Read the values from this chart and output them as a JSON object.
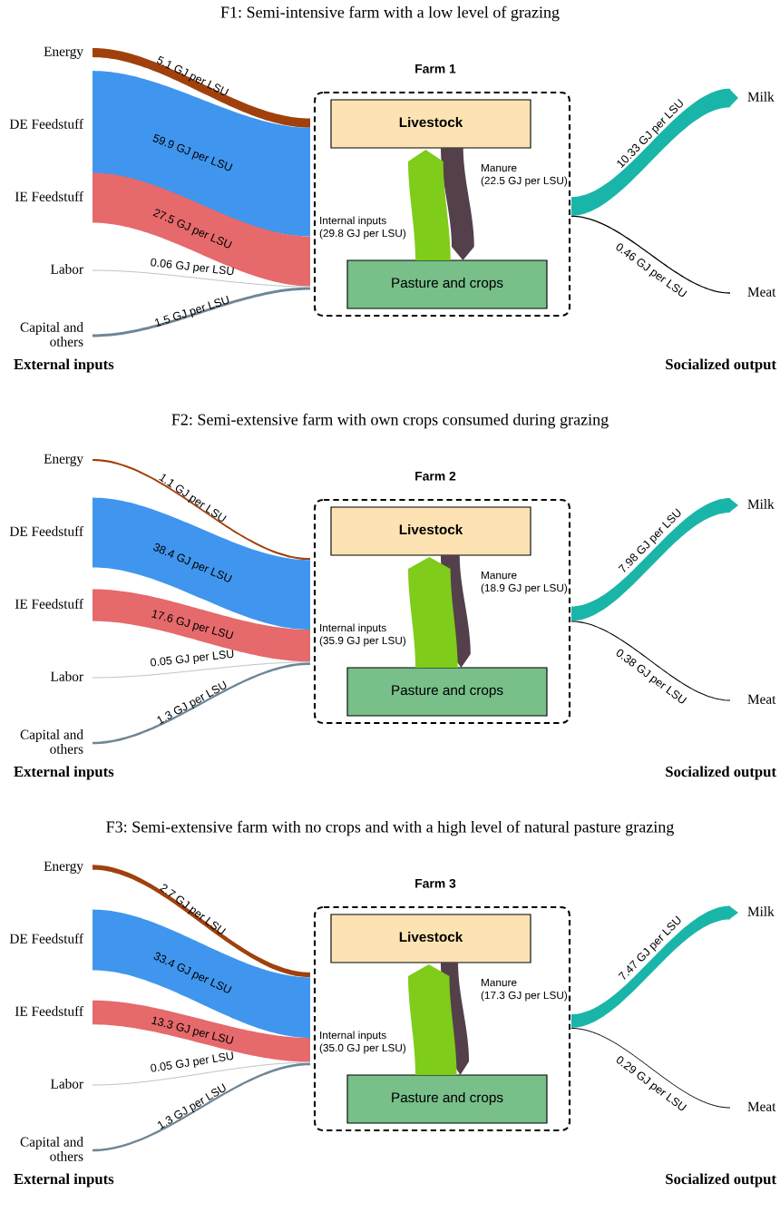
{
  "chart_data": [
    {
      "type": "other",
      "title": "F1: Semi-intensive farm with a low level of grazing",
      "categories": [
        "Energy",
        "DE Feedstuff",
        "IE Feedstuff",
        "Labor",
        "Capital and\nothers",
        "Internal inputs",
        "Manure",
        "Milk",
        "Meat"
      ],
      "values": [
        5.1,
        59.9,
        27.5,
        0.06,
        1.5,
        29.8,
        22.5,
        10.33,
        0.46
      ],
      "value_labels": [
        "5.1 GJ per LSU",
        "59.9 GJ per LSU",
        "27.5 GJ per LSU",
        "0.06 GJ per LSU",
        "1.5 GJ per LSU",
        "(29.8 GJ per LSU)",
        "(22.5 GJ per LSU)",
        "10.33 GJ per LSU",
        "0.46 GJ per LSU"
      ],
      "colors": [
        "#a0410d",
        "#4096ee",
        "#e6696b",
        "#b8c0c8",
        "#6e8697",
        "#7fcc1a",
        "#53404b",
        "#1ab5a9",
        "#000000"
      ],
      "annotations": [
        "Farm 1",
        "Livestock",
        "Pasture and crops",
        "External inputs",
        "Socialized output"
      ]
    },
    {
      "type": "other",
      "title": "F2: Semi-extensive farm with own crops consumed during grazing",
      "categories": [
        "Energy",
        "DE Feedstuff",
        "IE Feedstuff",
        "Labor",
        "Capital and\nothers",
        "Internal inputs",
        "Manure",
        "Milk",
        "Meat"
      ],
      "values": [
        1.1,
        38.4,
        17.6,
        0.05,
        1.3,
        35.9,
        18.9,
        7.98,
        0.38
      ],
      "value_labels": [
        "1.1 GJ per LSU",
        "38.4 GJ per LSU",
        "17.6 GJ per LSU",
        "0.05 GJ per LSU",
        "1.3 GJ per LSU",
        "(35.9 GJ per LSU)",
        "(18.9 GJ per LSU)",
        "7.98 GJ per LSU",
        "0.38 GJ per LSU"
      ],
      "colors": [
        "#a0410d",
        "#4096ee",
        "#e6696b",
        "#b8c0c8",
        "#6e8697",
        "#7fcc1a",
        "#53404b",
        "#1ab5a9",
        "#000000"
      ],
      "annotations": [
        "Farm 2",
        "Livestock",
        "Pasture and crops",
        "External inputs",
        "Socialized output"
      ]
    },
    {
      "type": "other",
      "title": "F3: Semi-extensive farm with no crops and with a high level of natural pasture grazing",
      "categories": [
        "Energy",
        "DE Feedstuff",
        "IE Feedstuff",
        "Labor",
        "Capital and\nothers",
        "Internal inputs",
        "Manure",
        "Milk",
        "Meat"
      ],
      "values": [
        2.7,
        33.4,
        13.3,
        0.05,
        1.3,
        35.0,
        17.3,
        7.47,
        0.29
      ],
      "value_labels": [
        "2.7 GJ per LSU",
        "33.4 GJ per LSU",
        "13.3 GJ per LSU",
        "0.05 GJ per LSU",
        "1.3 GJ per LSU",
        "(35.0 GJ per LSU)",
        "(17.3 GJ per LSU)",
        "7.47 GJ per LSU",
        "0.29 GJ per LSU"
      ],
      "colors": [
        "#a0410d",
        "#4096ee",
        "#e6696b",
        "#b8c0c8",
        "#6e8697",
        "#7fcc1a",
        "#53404b",
        "#1ab5a9",
        "#000000"
      ],
      "annotations": [
        "Farm 3",
        "Livestock",
        "Pasture and crops",
        "External inputs",
        "Socialized output"
      ]
    }
  ]
}
